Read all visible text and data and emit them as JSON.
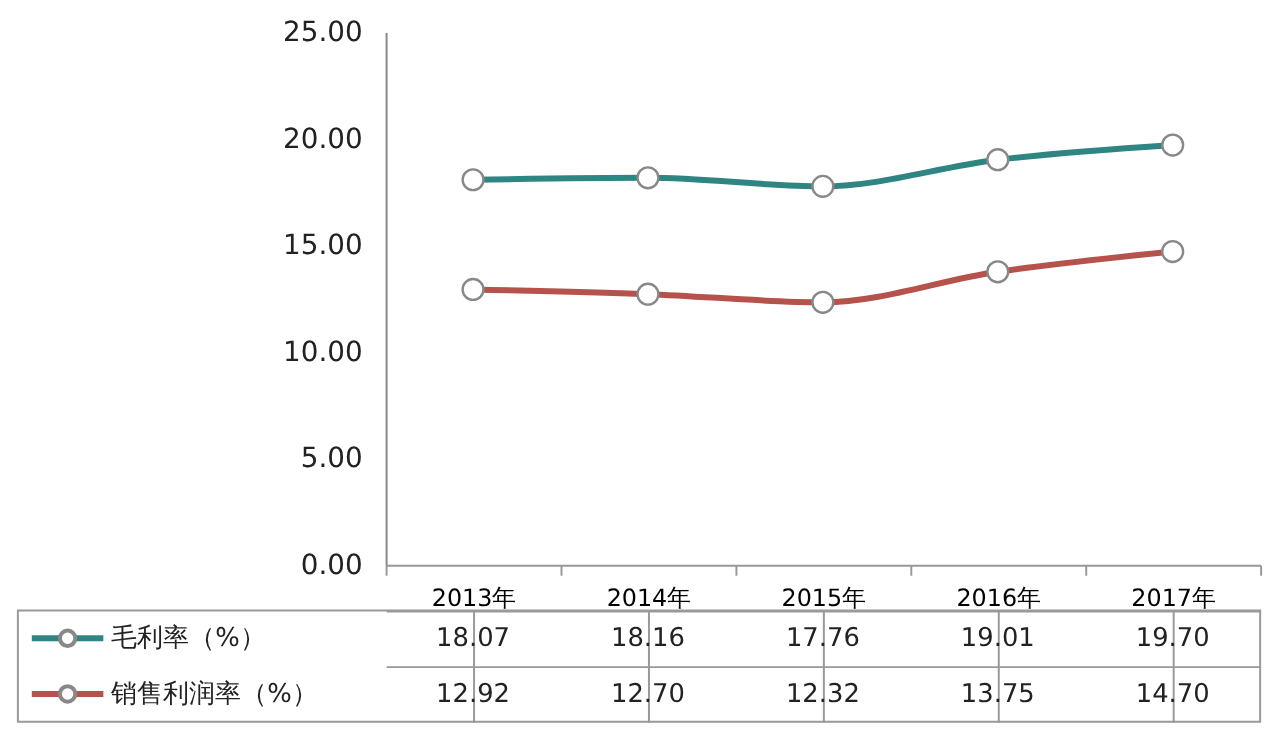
{
  "chart_data": {
    "type": "line",
    "categories": [
      "2013年",
      "2014年",
      "2015年",
      "2016年",
      "2017年"
    ],
    "series": [
      {
        "name": "毛利率（%）",
        "color": "#2e8582",
        "values": [
          18.07,
          18.16,
          17.76,
          19.01,
          19.7
        ],
        "value_labels": [
          "18.07",
          "18.16",
          "17.76",
          "19.01",
          "19.70"
        ]
      },
      {
        "name": "销售利润率（%）",
        "color": "#b5524c",
        "values": [
          12.92,
          12.7,
          12.32,
          13.75,
          14.7
        ],
        "value_labels": [
          "12.92",
          "12.70",
          "12.32",
          "13.75",
          "14.70"
        ]
      }
    ],
    "ylim": [
      0,
      25
    ],
    "yticks": [
      {
        "value": 0,
        "label": "0.00"
      },
      {
        "value": 5,
        "label": "5.00"
      },
      {
        "value": 10,
        "label": "10.00"
      },
      {
        "value": 15,
        "label": "15.00"
      },
      {
        "value": 20,
        "label": "20.00"
      },
      {
        "value": 25,
        "label": "25.00"
      }
    ],
    "marker": "circle",
    "line_style": "solid",
    "grid": false,
    "legend": "bottom left"
  }
}
